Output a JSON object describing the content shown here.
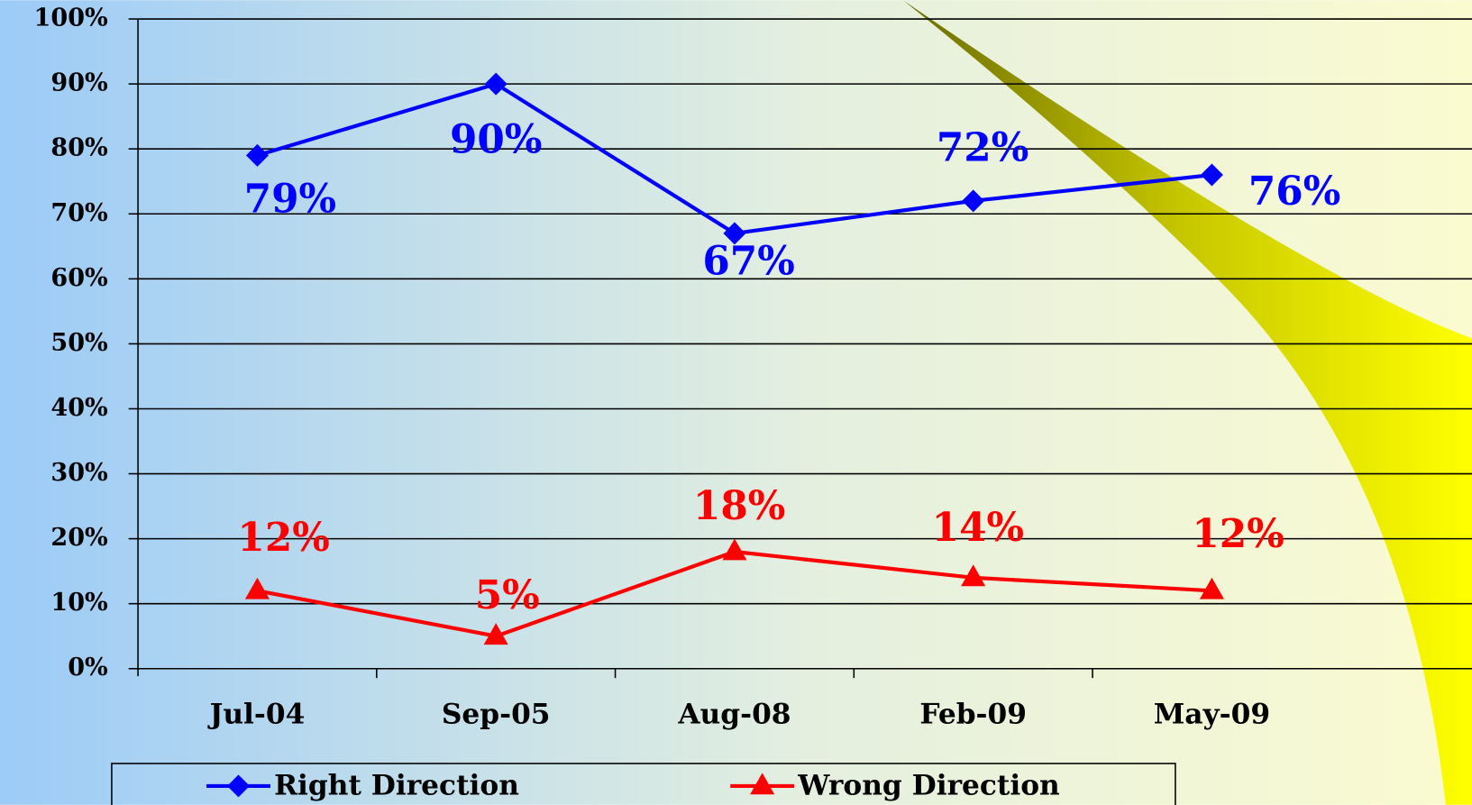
{
  "chart_data": {
    "type": "line",
    "categories": [
      "Jul-04",
      "Sep-05",
      "Aug-08",
      "Feb-09",
      "May-09"
    ],
    "series": [
      {
        "name": "Right Direction",
        "color": "#0000ff",
        "marker": "diamond",
        "values": [
          79,
          90,
          67,
          72,
          76
        ],
        "value_labels": [
          "79%",
          "90%",
          "67%",
          "72%",
          "76%"
        ]
      },
      {
        "name": "Wrong Direction",
        "color": "#ff0000",
        "marker": "triangle",
        "values": [
          12,
          5,
          18,
          14,
          12
        ],
        "value_labels": [
          "12%",
          "5%",
          "18%",
          "14%",
          "12%"
        ]
      }
    ],
    "ylim": [
      0,
      100
    ],
    "yticks": [
      {
        "value": 0,
        "label": "0%"
      },
      {
        "value": 10,
        "label": "10%"
      },
      {
        "value": 20,
        "label": "20%"
      },
      {
        "value": 30,
        "label": "30%"
      },
      {
        "value": 40,
        "label": "40%"
      },
      {
        "value": 50,
        "label": "50%"
      },
      {
        "value": 60,
        "label": "60%"
      },
      {
        "value": 70,
        "label": "70%"
      },
      {
        "value": 80,
        "label": "80%"
      },
      {
        "value": 90,
        "label": "90%"
      },
      {
        "value": 100,
        "label": "100%"
      }
    ],
    "grid": true,
    "legend": "bottom"
  }
}
